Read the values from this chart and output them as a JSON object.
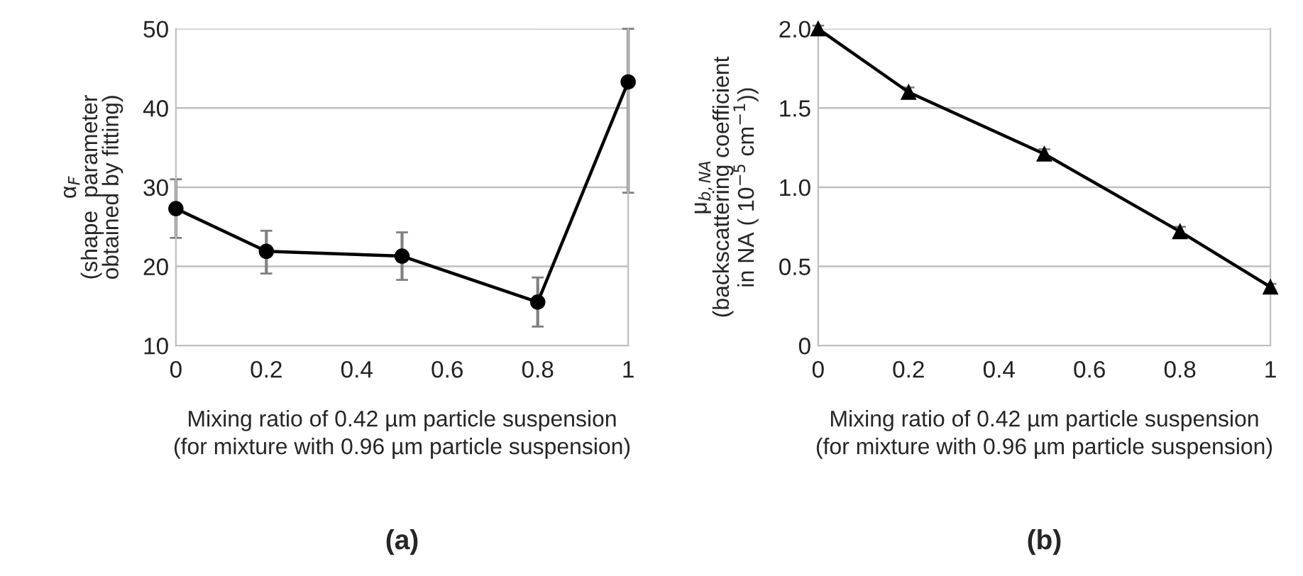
{
  "chart_data": [
    {
      "type": "line",
      "title": "(a)",
      "xlabel": "Mixing ratio of 0.42 µm particle suspension\n(for mixture with 0.96 µm particle suspension)",
      "ylabel": "α$_{F}$\n(shape  parameter\nobtained by fitting)",
      "x": [
        0,
        0.2,
        0.5,
        0.8,
        1
      ],
      "series": [
        {
          "color": "#000000",
          "values": [
            27.3,
            21.9,
            21.3,
            15.5,
            43.3
          ],
          "errors": [
            [
              23.6,
              31.0
            ],
            [
              19.1,
              24.5
            ],
            [
              18.3,
              24.3
            ],
            [
              12.4,
              18.6
            ],
            [
              29.3,
              50
            ]
          ]
        }
      ],
      "xlim": [
        0,
        1
      ],
      "xticks": [
        0,
        {
          "value": 0.2,
          "label": "0.2"
        },
        {
          "value": 0.4,
          "label": "0.4"
        },
        {
          "value": 0.6,
          "label": "0.6"
        },
        {
          "value": 0.8,
          "label": "0.8"
        },
        1
      ],
      "ylim": [
        10,
        50
      ],
      "yticks": [
        10,
        20,
        30,
        40,
        50
      ],
      "grid": "y",
      "marker": "circle",
      "line_style": "solid"
    },
    {
      "type": "line",
      "title": "(b)",
      "xlabel": "Mixing ratio of 0.42 µm particle suspension\n(for mixture with 0.96 µm particle suspension)",
      "ylabel": "μ$_{b,NA}$\n(backscattering coefficient\nin NA ( 10$^{−5}$ cm$^{−1}$))",
      "x": [
        0,
        0.2,
        0.5,
        0.8,
        1
      ],
      "series": [
        {
          "color": "#000000",
          "values": [
            2.0,
            1.6,
            1.21,
            0.72,
            0.37
          ],
          "errors": [
            0.02,
            0.03,
            0.03,
            0.03,
            0.02
          ]
        }
      ],
      "xlim": [
        0,
        1
      ],
      "xticks": [
        0,
        {
          "value": 0.2,
          "label": "0.2"
        },
        {
          "value": 0.4,
          "label": "0.4"
        },
        {
          "value": 0.6,
          "label": "0.6"
        },
        {
          "value": 0.8,
          "label": "0.8"
        },
        1
      ],
      "ylim": [
        0,
        2.0
      ],
      "yticks": [
        0,
        {
          "value": 0.5,
          "label": "0.5"
        },
        {
          "value": 1.0,
          "label": "1.0"
        },
        {
          "value": 1.5,
          "label": "1.5"
        },
        {
          "value": 2.0,
          "label": "2.0"
        }
      ],
      "grid": "y",
      "marker": "triangle",
      "line_style": "solid"
    }
  ]
}
